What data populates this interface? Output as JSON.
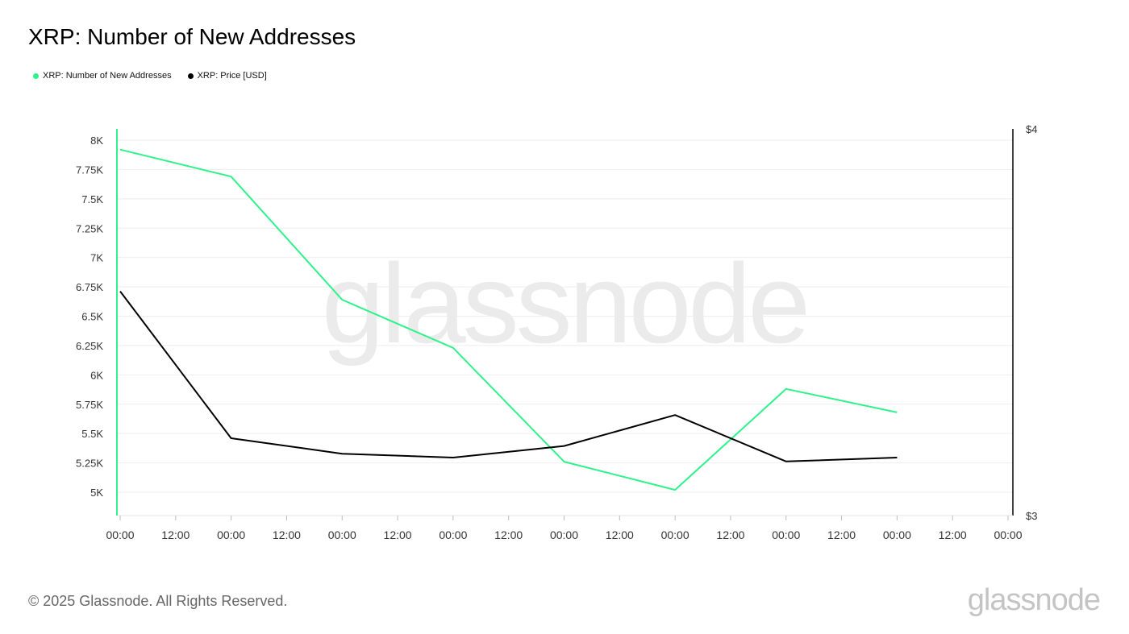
{
  "title": "XRP: Number of New Addresses",
  "legend": [
    {
      "label": "XRP: Number of New Addresses",
      "color": "#2ef28a"
    },
    {
      "label": "XRP: Price [USD]",
      "color": "#000000"
    }
  ],
  "watermark": "glassnode",
  "footer": {
    "copyright": "© 2025 Glassnode. All Rights Reserved.",
    "logo": "glassnode"
  },
  "chart_data": {
    "type": "line",
    "x_tick_labels": [
      "00:00",
      "12:00",
      "00:00",
      "12:00",
      "00:00",
      "12:00",
      "00:00",
      "12:00",
      "00:00",
      "12:00",
      "00:00",
      "12:00",
      "00:00",
      "12:00",
      "00:00",
      "12:00",
      "00:00"
    ],
    "left_axis": {
      "ticks": [
        5000,
        5250,
        5500,
        5750,
        6000,
        6250,
        6500,
        6750,
        7000,
        7250,
        7500,
        7750,
        8000
      ],
      "tick_labels": [
        "5K",
        "5.25K",
        "5.5K",
        "5.75K",
        "6K",
        "6.25K",
        "6.5K",
        "6.75K",
        "7K",
        "7.25K",
        "7.5K",
        "7.75K",
        "8K"
      ],
      "ylim": [
        4800,
        8100
      ]
    },
    "right_axis": {
      "ticks": [
        3,
        4
      ],
      "tick_labels": [
        "$3",
        "$4"
      ],
      "ylim": [
        3,
        4
      ]
    },
    "series": [
      {
        "name": "XRP: Number of New Addresses",
        "axis": "left",
        "color": "#2ef28a",
        "x_index": [
          0,
          1,
          2,
          3,
          4,
          5,
          6,
          7
        ],
        "values": [
          7920,
          7690,
          6640,
          6230,
          5260,
          5020,
          5880,
          5680
        ]
      },
      {
        "name": "XRP: Price [USD]",
        "axis": "right",
        "color": "#000000",
        "x_index": [
          0,
          1,
          2,
          3,
          4,
          5,
          6,
          7
        ],
        "values": [
          3.58,
          3.2,
          3.16,
          3.15,
          3.18,
          3.26,
          3.14,
          3.15
        ]
      }
    ],
    "grid": true
  }
}
